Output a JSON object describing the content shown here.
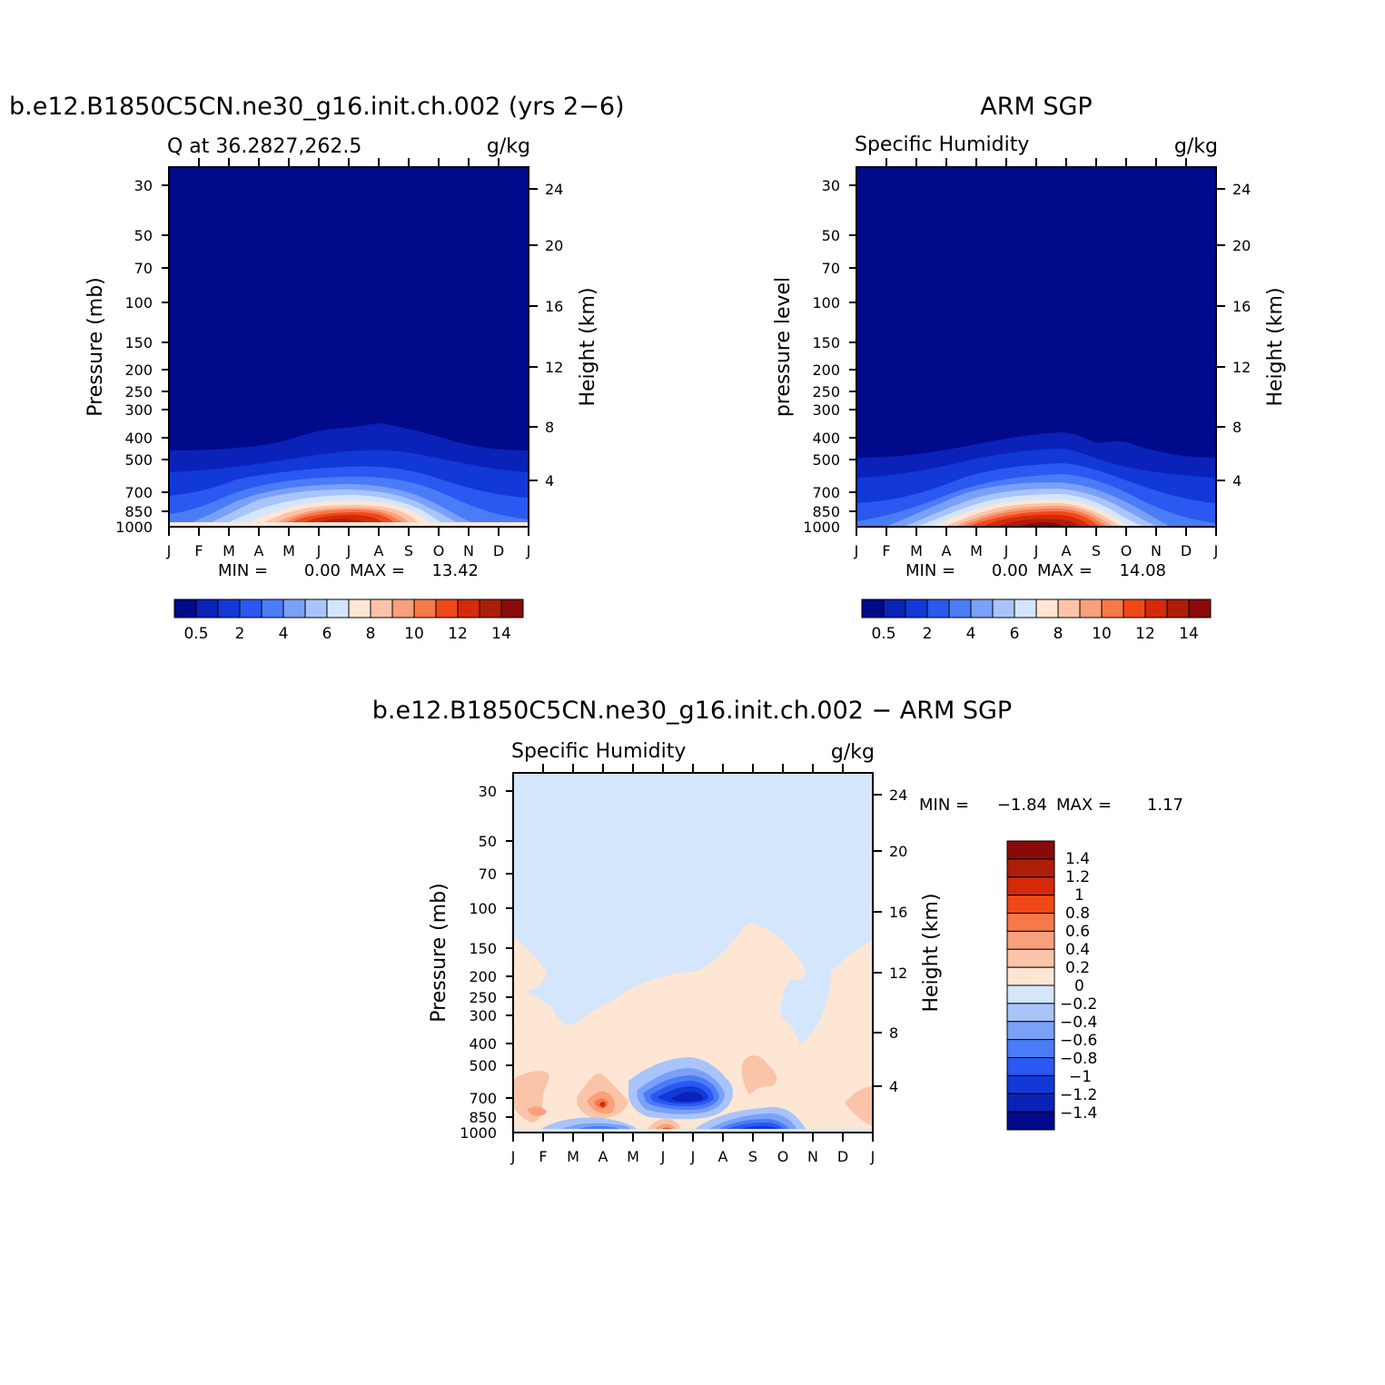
{
  "colors": {
    "qScale": [
      "#000a8a",
      "#0a22b8",
      "#1238d8",
      "#2a58f0",
      "#4a7cf8",
      "#7aa0f8",
      "#a8c4fa",
      "#d4e6fc",
      "#fde6d4",
      "#fbc4a8",
      "#f9a07c",
      "#f77848",
      "#f14818",
      "#d42a0a",
      "#ae1d08",
      "#8a0a0a"
    ],
    "diffScale": [
      "#000a8a",
      "#0a22b8",
      "#1238d8",
      "#2a58f0",
      "#4a7cf8",
      "#7aa0f8",
      "#a8c4fa",
      "#d4e6fc",
      "#fde6d4",
      "#fbc4a8",
      "#f9a07c",
      "#f77848",
      "#f14818",
      "#d42a0a",
      "#ae1d08",
      "#8a0a0a"
    ]
  },
  "chart_data": [
    {
      "type": "heatmap",
      "title": "b.e12.B1850C5CN.ne30_g16.init.ch.002 (yrs 2−6)",
      "subtitle_left": "Q at 36.2827,262.5",
      "subtitle_right": "g/kg",
      "ylabel": "Pressure (mb)",
      "y2label": "Height (km)",
      "x_ticks": [
        "J",
        "F",
        "M",
        "A",
        "M",
        "J",
        "J",
        "A",
        "S",
        "O",
        "N",
        "D",
        "J"
      ],
      "y_ticks": [
        "30",
        "50",
        "70",
        "100",
        "150",
        "200",
        "250",
        "300",
        "400",
        "500",
        "700",
        "850",
        "1000"
      ],
      "y2_ticks": [
        "24",
        "20",
        "16",
        "12",
        "8",
        "4"
      ],
      "min_label": "MIN =",
      "min_value": "0.00",
      "max_label": "MAX =",
      "max_value": "13.42",
      "levels": [
        0.5,
        1,
        2,
        3,
        4,
        5,
        6,
        7,
        8,
        9,
        10,
        11,
        12,
        13,
        14
      ],
      "colorbar_labels": [
        "0.5",
        "2",
        "4",
        "6",
        "8",
        "10",
        "12",
        "14"
      ],
      "peak_month": "J",
      "peak_value": 13.42
    },
    {
      "type": "heatmap",
      "title": "ARM SGP",
      "subtitle_left": "Specific Humidity",
      "subtitle_right": "g/kg",
      "ylabel": "pressure level",
      "y2label": "Height (km)",
      "x_ticks": [
        "J",
        "F",
        "M",
        "A",
        "M",
        "J",
        "J",
        "A",
        "S",
        "O",
        "N",
        "D",
        "J"
      ],
      "y_ticks": [
        "30",
        "50",
        "70",
        "100",
        "150",
        "200",
        "250",
        "300",
        "400",
        "500",
        "700",
        "850",
        "1000"
      ],
      "y2_ticks": [
        "24",
        "20",
        "16",
        "12",
        "8",
        "4"
      ],
      "min_label": "MIN =",
      "min_value": "0.00",
      "max_label": "MAX =",
      "max_value": "14.08",
      "levels": [
        0.5,
        1,
        2,
        3,
        4,
        5,
        6,
        7,
        8,
        9,
        10,
        11,
        12,
        13,
        14
      ],
      "colorbar_labels": [
        "0.5",
        "2",
        "4",
        "6",
        "8",
        "10",
        "12",
        "14"
      ],
      "peak_month": "J",
      "peak_value": 14.08
    },
    {
      "type": "heatmap",
      "title": "b.e12.B1850C5CN.ne30_g16.init.ch.002 − ARM SGP",
      "subtitle_left": "Specific Humidity",
      "subtitle_right": "g/kg",
      "ylabel": "Pressure (mb)",
      "y2label": "Height (km)",
      "x_ticks": [
        "J",
        "F",
        "M",
        "A",
        "M",
        "J",
        "J",
        "A",
        "S",
        "O",
        "N",
        "D",
        "J"
      ],
      "y_ticks": [
        "30",
        "50",
        "70",
        "100",
        "150",
        "200",
        "250",
        "300",
        "400",
        "500",
        "700",
        "850",
        "1000"
      ],
      "y2_ticks": [
        "24",
        "20",
        "16",
        "12",
        "8",
        "4"
      ],
      "min_label": "MIN =",
      "min_value": "−1.84",
      "max_label": "MAX =",
      "max_value": "1.17",
      "levels": [
        -1.4,
        -1.2,
        -1,
        -0.8,
        -0.6,
        -0.4,
        -0.2,
        0,
        0.2,
        0.4,
        0.6,
        0.8,
        1,
        1.2,
        1.4
      ],
      "colorbar_labels": [
        "1.4",
        "1.2",
        "1",
        "0.8",
        "0.6",
        "0.4",
        "0.2",
        "0",
        "−0.2",
        "−0.4",
        "−0.6",
        "−0.8",
        "−1",
        "−1.2",
        "−1.4"
      ]
    }
  ]
}
